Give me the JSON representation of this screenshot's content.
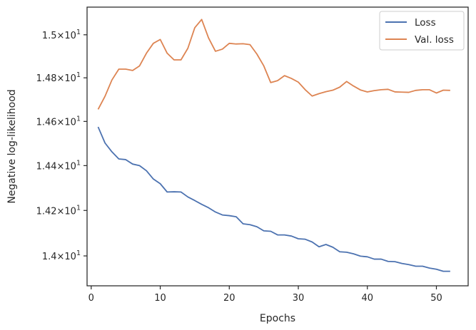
{
  "chart_data": {
    "type": "line",
    "xlabel": "Epochs",
    "ylabel": "Negative log-likelihood",
    "yscale": "log",
    "xlim": [
      -0.6,
      54.6
    ],
    "ylim": [
      13.87,
      15.13
    ],
    "grid": false,
    "legend_position": "top-right",
    "x_ticks": [
      {
        "value": 0,
        "label": "0"
      },
      {
        "value": 10,
        "label": "10"
      },
      {
        "value": 20,
        "label": "20"
      },
      {
        "value": 30,
        "label": "30"
      },
      {
        "value": 40,
        "label": "40"
      },
      {
        "value": 50,
        "label": "50"
      }
    ],
    "y_ticks": [
      {
        "value": 14.0,
        "base": "1.4",
        "exp": "1"
      },
      {
        "value": 14.2,
        "base": "1.42",
        "exp": "1"
      },
      {
        "value": 14.4,
        "base": "1.44",
        "exp": "1"
      },
      {
        "value": 14.6,
        "base": "1.46",
        "exp": "1"
      },
      {
        "value": 14.8,
        "base": "1.48",
        "exp": "1"
      },
      {
        "value": 15.0,
        "base": "1.5",
        "exp": "1"
      }
    ],
    "tick_multiplier": "×",
    "tick_exponent_base": "10",
    "x": [
      1,
      2,
      3,
      4,
      5,
      6,
      7,
      8,
      9,
      10,
      11,
      12,
      13,
      14,
      15,
      16,
      17,
      18,
      19,
      20,
      21,
      22,
      23,
      24,
      25,
      26,
      27,
      28,
      29,
      30,
      31,
      32,
      33,
      34,
      35,
      36,
      37,
      38,
      39,
      40,
      41,
      42,
      43,
      44,
      45,
      46,
      47,
      48,
      49,
      50,
      51,
      52
    ],
    "series": [
      {
        "name": "Loss",
        "color": "#4c72b0",
        "values": [
          14.575,
          14.502,
          14.462,
          14.43,
          14.427,
          14.407,
          14.4,
          14.377,
          14.34,
          14.319,
          14.282,
          14.283,
          14.282,
          14.26,
          14.244,
          14.227,
          14.212,
          14.193,
          14.18,
          14.177,
          14.172,
          14.141,
          14.137,
          14.128,
          14.11,
          14.108,
          14.092,
          14.092,
          14.087,
          14.075,
          14.073,
          14.061,
          14.04,
          14.05,
          14.038,
          14.018,
          14.016,
          14.009,
          13.999,
          13.996,
          13.986,
          13.986,
          13.976,
          13.975,
          13.967,
          13.962,
          13.955,
          13.955,
          13.947,
          13.942,
          13.933,
          13.933
        ]
      },
      {
        "name": "Val. loss",
        "color": "#dd8452",
        "values": [
          14.655,
          14.715,
          14.79,
          14.84,
          14.84,
          14.834,
          14.855,
          14.914,
          14.96,
          14.978,
          14.914,
          14.883,
          14.883,
          14.937,
          15.033,
          15.072,
          14.985,
          14.923,
          14.933,
          14.96,
          14.957,
          14.958,
          14.954,
          14.91,
          14.855,
          14.778,
          14.787,
          14.81,
          14.797,
          14.78,
          14.745,
          14.716,
          14.727,
          14.736,
          14.743,
          14.757,
          14.783,
          14.762,
          14.744,
          14.735,
          14.741,
          14.745,
          14.747,
          14.735,
          14.734,
          14.733,
          14.742,
          14.745,
          14.745,
          14.73,
          14.743,
          14.742
        ]
      }
    ]
  }
}
